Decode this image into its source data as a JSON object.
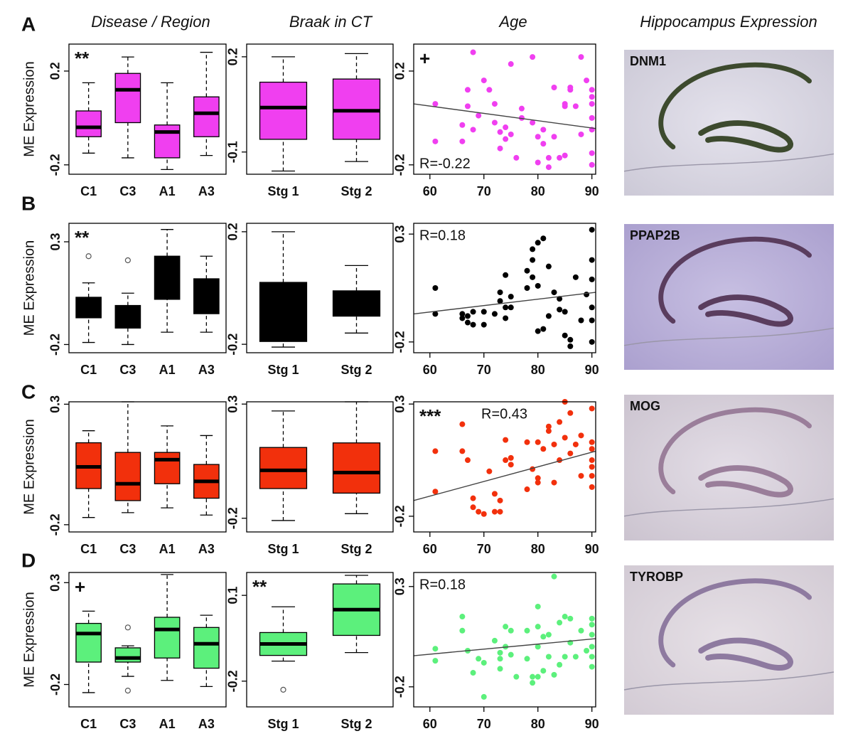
{
  "column_titles": [
    "Disease / Region",
    "Braak in CT",
    "Age",
    "Hippocampus Expression"
  ],
  "panel_labels": [
    "A",
    "B",
    "C",
    "D"
  ],
  "image_labels": [
    "DNM1",
    "PPAP2B",
    "MOG",
    "TYROBP"
  ],
  "chart_data": [
    {
      "type": "box",
      "categories": [
        "C1",
        "C3",
        "A1",
        "A3"
      ],
      "color": "#f03ff0",
      "y_label": "ME Expression",
      "annotation": "**",
      "ylim": [
        -0.24,
        0.315
      ],
      "yticks": [
        -0.2,
        0.2
      ],
      "whisker_low": [
        -0.15,
        -0.17,
        -0.22,
        -0.16
      ],
      "q1": [
        -0.08,
        -0.02,
        -0.17,
        -0.08
      ],
      "median": [
        -0.04,
        0.12,
        -0.06,
        0.02
      ],
      "q3": [
        0.03,
        0.19,
        -0.03,
        0.09
      ],
      "whisker_high": [
        0.15,
        0.26,
        0.15,
        0.28
      ],
      "outliers": [
        [],
        [],
        [],
        []
      ]
    },
    {
      "type": "box",
      "categories": [
        "Stg 1",
        "Stg 2"
      ],
      "color": "#f03ff0",
      "ylim": [
        -0.17,
        0.24
      ],
      "yticks": [
        -0.1,
        0.2
      ],
      "whisker_low": [
        -0.16,
        -0.13
      ],
      "q1": [
        -0.06,
        -0.06
      ],
      "median": [
        0.04,
        0.03
      ],
      "q3": [
        0.12,
        0.13
      ],
      "whisker_high": [
        0.2,
        0.21
      ],
      "outliers": [
        [],
        []
      ]
    },
    {
      "type": "scatter",
      "color": "#f03ff0",
      "annotation": "+",
      "r_label": "R=-0.22",
      "xlim": [
        57,
        90.7
      ],
      "xticks": [
        60,
        70,
        80,
        90
      ],
      "ylim": [
        -0.24,
        0.315
      ],
      "yticks": [
        -0.2,
        0.2
      ],
      "x": [
        61,
        61,
        66,
        66,
        67,
        67,
        68,
        68,
        69,
        70,
        71,
        72,
        72,
        73,
        73,
        74,
        74,
        75,
        75,
        76,
        77,
        77,
        79,
        79,
        80,
        80,
        81,
        81,
        82,
        82,
        83,
        83,
        84,
        85,
        85,
        85,
        86,
        86,
        87,
        88,
        88,
        89,
        90,
        90,
        90,
        90,
        90,
        90,
        90
      ],
      "values": [
        0.06,
        -0.1,
        -0.03,
        -0.1,
        0.05,
        0.12,
        0.28,
        -0.05,
        0.01,
        0.16,
        0.12,
        0.06,
        -0.02,
        -0.06,
        -0.13,
        -0.09,
        -0.04,
        0.23,
        -0.07,
        -0.17,
        0.04,
        0.0,
        -0.02,
        0.26,
        -0.08,
        -0.19,
        -0.05,
        -0.11,
        -0.17,
        -0.21,
        -0.08,
        0.13,
        -0.17,
        0.06,
        0.05,
        -0.16,
        0.13,
        0.12,
        0.05,
        0.26,
        -0.07,
        0.16,
        0.12,
        0.09,
        0.06,
        0.0,
        -0.05,
        -0.15,
        -0.2
      ],
      "trend": {
        "x": [
          57,
          90.7
        ],
        "values": [
          0.06,
          -0.045
        ]
      }
    },
    {
      "type": "box",
      "categories": [
        "C1",
        "C3",
        "A1",
        "A3"
      ],
      "color": "#000000",
      "y_label": "ME Expression",
      "annotation": "**",
      "ylim": [
        -0.24,
        0.39
      ],
      "yticks": [
        -0.2,
        0.3
      ],
      "whisker_low": [
        -0.19,
        -0.2,
        -0.14,
        -0.14
      ],
      "q1": [
        -0.07,
        -0.12,
        0.02,
        -0.05
      ],
      "median": [
        -0.02,
        -0.08,
        0.1,
        0.06
      ],
      "q3": [
        0.03,
        -0.01,
        0.23,
        0.12
      ],
      "whisker_high": [
        0.1,
        0.05,
        0.36,
        0.23
      ],
      "outliers": [
        [
          0.23
        ],
        [
          0.21
        ],
        [],
        []
      ]
    },
    {
      "type": "box",
      "categories": [
        "Stg 1",
        "Stg 2"
      ],
      "color": "#000000",
      "ylim": [
        -0.23,
        0.23
      ],
      "yticks": [
        -0.2,
        0.2
      ],
      "whisker_low": [
        -0.21,
        -0.16
      ],
      "q1": [
        -0.19,
        -0.1
      ],
      "median": [
        -0.1,
        -0.05
      ],
      "q3": [
        0.02,
        -0.01
      ],
      "whisker_high": [
        0.2,
        0.08
      ],
      "outliers": [
        [],
        []
      ]
    },
    {
      "type": "scatter",
      "color": "#000000",
      "r_label": "R=0.18",
      "xlim": [
        57,
        90.7
      ],
      "xticks": [
        60,
        70,
        80,
        90
      ],
      "ylim": [
        -0.25,
        0.35
      ],
      "yticks": [
        -0.2,
        0.3
      ],
      "x": [
        61,
        61,
        66,
        66,
        67,
        67,
        68,
        68,
        70,
        70,
        72,
        73,
        73,
        74,
        74,
        74,
        75,
        75,
        78,
        78,
        79,
        79,
        79,
        80,
        80,
        80,
        81,
        81,
        82,
        82,
        83,
        84,
        84,
        85,
        85,
        86,
        86,
        87,
        88,
        89,
        90,
        90,
        90,
        90,
        90,
        90
      ],
      "values": [
        0.05,
        -0.07,
        -0.07,
        -0.09,
        -0.08,
        -0.11,
        -0.06,
        -0.12,
        -0.12,
        -0.06,
        -0.07,
        -0.01,
        0.03,
        -0.04,
        -0.09,
        0.11,
        -0.04,
        0.01,
        0.13,
        0.05,
        0.18,
        0.1,
        0.23,
        0.06,
        -0.15,
        0.26,
        0.28,
        -0.14,
        -0.08,
        0.15,
        0.03,
        -0.05,
        0.0,
        -0.06,
        -0.17,
        -0.22,
        -0.19,
        0.1,
        -0.1,
        0.02,
        0.32,
        0.18,
        0.09,
        -0.04,
        -0.1,
        -0.2
      ],
      "trend": {
        "x": [
          57,
          90.7
        ],
        "values": [
          -0.07,
          0.03
        ]
      }
    },
    {
      "type": "box",
      "categories": [
        "C1",
        "C3",
        "A1",
        "A3"
      ],
      "color": "#f2300c",
      "y_label": "ME Expression",
      "ylim": [
        -0.23,
        0.31
      ],
      "yticks": [
        -0.2,
        0.3
      ],
      "whisker_low": [
        -0.17,
        -0.15,
        -0.13,
        -0.16
      ],
      "q1": [
        -0.05,
        -0.1,
        -0.03,
        -0.09
      ],
      "median": [
        0.04,
        -0.03,
        0.07,
        -0.02
      ],
      "q3": [
        0.14,
        0.1,
        0.1,
        0.05
      ],
      "whisker_high": [
        0.19,
        0.31,
        0.21,
        0.17
      ],
      "outliers": [
        [],
        [],
        [],
        []
      ]
    },
    {
      "type": "box",
      "categories": [
        "Stg 1",
        "Stg 2"
      ],
      "color": "#f2300c",
      "ylim": [
        -0.26,
        0.31
      ],
      "yticks": [
        -0.2,
        0.3
      ],
      "whisker_low": [
        -0.21,
        -0.18
      ],
      "q1": [
        -0.07,
        -0.09
      ],
      "median": [
        0.01,
        0.0
      ],
      "q3": [
        0.11,
        0.13
      ],
      "whisker_high": [
        0.27,
        0.31
      ],
      "outliers": [
        [],
        []
      ]
    },
    {
      "type": "scatter",
      "color": "#f2300c",
      "annotation": "***",
      "r_label": "R=0.43",
      "xlim": [
        57,
        90.7
      ],
      "xticks": [
        60,
        70,
        80,
        90
      ],
      "ylim": [
        -0.27,
        0.31
      ],
      "yticks": [
        -0.2,
        0.3
      ],
      "x": [
        61,
        61,
        66,
        66,
        67,
        68,
        68,
        69,
        70,
        71,
        72,
        72,
        73,
        73,
        74,
        74,
        75,
        75,
        78,
        78,
        79,
        80,
        80,
        80,
        81,
        82,
        82,
        83,
        83,
        84,
        84,
        85,
        85,
        86,
        86,
        87,
        88,
        88,
        90,
        90,
        90,
        90,
        90,
        90,
        90
      ],
      "values": [
        0.09,
        -0.09,
        0.21,
        0.09,
        0.05,
        -0.12,
        -0.16,
        -0.18,
        -0.19,
        0.0,
        -0.1,
        -0.18,
        -0.13,
        -0.18,
        0.05,
        0.14,
        0.06,
        0.03,
        0.13,
        -0.08,
        0.01,
        0.13,
        -0.05,
        -0.03,
        0.1,
        0.2,
        0.18,
        0.12,
        -0.05,
        0.22,
        0.05,
        0.31,
        0.15,
        0.26,
        0.08,
        0.12,
        0.16,
        -0.02,
        0.28,
        0.13,
        0.1,
        0.05,
        0.02,
        -0.02,
        -0.07
      ],
      "trend": {
        "x": [
          57,
          90.7
        ],
        "values": [
          -0.13,
          0.09
        ]
      }
    },
    {
      "type": "box",
      "categories": [
        "C1",
        "C3",
        "A1",
        "A3"
      ],
      "color": "#5cf07c",
      "y_label": "ME Expression",
      "annotation": "+",
      "ylim": [
        -0.31,
        0.35
      ],
      "yticks": [
        -0.2,
        0.3
      ],
      "whisker_low": [
        -0.24,
        -0.16,
        -0.18,
        -0.21
      ],
      "q1": [
        -0.09,
        -0.09,
        -0.07,
        -0.12
      ],
      "median": [
        0.05,
        -0.07,
        0.07,
        0.0
      ],
      "q3": [
        0.1,
        -0.02,
        0.13,
        0.08
      ],
      "whisker_high": [
        0.16,
        -0.01,
        0.34,
        0.14
      ],
      "outliers": [
        [],
        [
          0.08,
          -0.23
        ],
        [],
        []
      ]
    },
    {
      "type": "box",
      "categories": [
        "Stg 1",
        "Stg 2"
      ],
      "color": "#5cf07c",
      "annotation": "**",
      "ylim": [
        -0.29,
        0.18
      ],
      "yticks": [
        -0.2,
        0.1
      ],
      "whisker_low": [
        -0.13,
        -0.1
      ],
      "q1": [
        -0.11,
        -0.04
      ],
      "median": [
        -0.07,
        0.05
      ],
      "q3": [
        -0.03,
        0.14
      ],
      "whisker_high": [
        0.06,
        0.17
      ],
      "outliers": [
        [
          -0.23
        ],
        []
      ]
    },
    {
      "type": "scatter",
      "color": "#5cf07c",
      "r_label": "R=0.18",
      "xlim": [
        57,
        90.7
      ],
      "xticks": [
        60,
        70,
        80,
        90
      ],
      "ylim": [
        -0.3,
        0.37
      ],
      "yticks": [
        -0.2,
        0.3
      ],
      "x": [
        61,
        61,
        66,
        66,
        67,
        68,
        69,
        70,
        70,
        72,
        73,
        73,
        73,
        74,
        74,
        75,
        75,
        76,
        78,
        78,
        79,
        79,
        80,
        80,
        80,
        80,
        81,
        81,
        82,
        82,
        83,
        83,
        84,
        84,
        85,
        85,
        86,
        86,
        87,
        88,
        89,
        90,
        90,
        90,
        90,
        90,
        90
      ],
      "values": [
        -0.01,
        -0.07,
        0.15,
        0.08,
        -0.02,
        -0.13,
        -0.06,
        -0.25,
        -0.08,
        0.03,
        -0.03,
        -0.06,
        -0.11,
        0.1,
        0.0,
        0.08,
        -0.04,
        -0.15,
        0.08,
        -0.06,
        -0.15,
        -0.18,
        0.1,
        0.0,
        -0.15,
        0.2,
        0.05,
        -0.12,
        0.06,
        -0.05,
        0.35,
        -0.14,
        0.12,
        -0.09,
        0.15,
        -0.05,
        0.14,
        0.02,
        -0.05,
        0.08,
        -0.02,
        0.14,
        0.11,
        0.06,
        0.0,
        -0.05,
        -0.1
      ],
      "trend": {
        "x": [
          57,
          90.7
        ],
        "values": [
          -0.045,
          0.04
        ]
      }
    }
  ]
}
